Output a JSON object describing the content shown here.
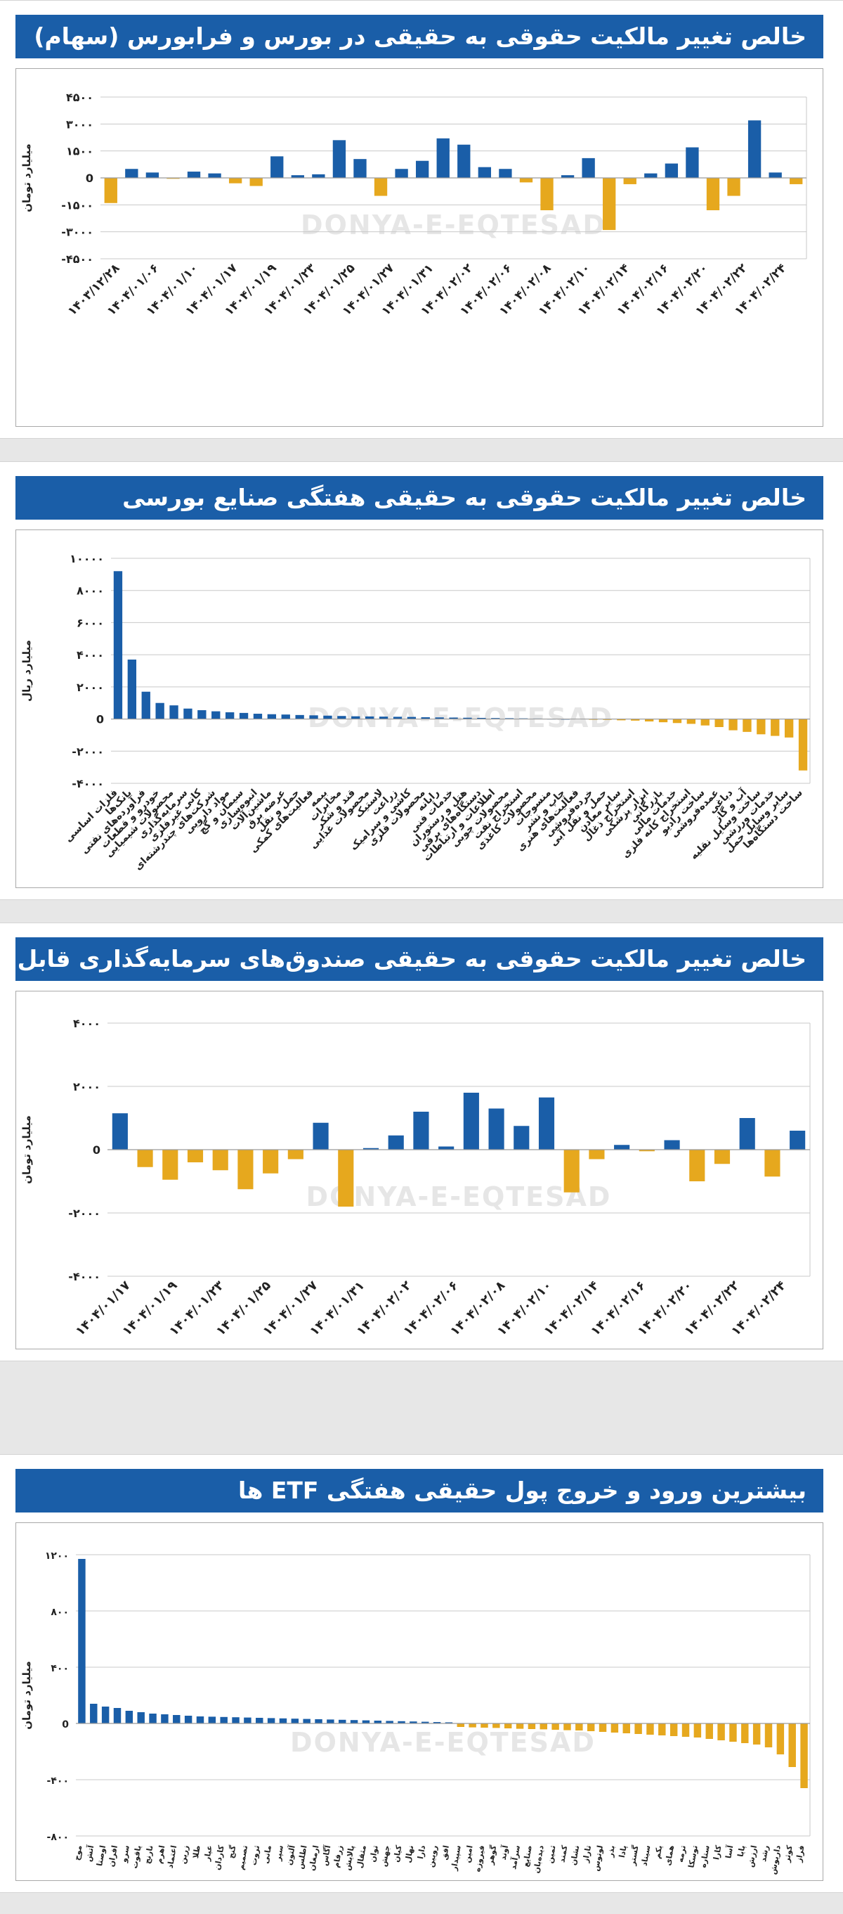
{
  "watermark": "DONYA-E-EQTESAD",
  "colors": {
    "positive": "#1a5ea8",
    "negative": "#e6a81e",
    "title_bg": "#1a5ea8",
    "grid": "#c8c8c8"
  },
  "chart_data": [
    {
      "type": "bar",
      "title": "خالص تغییر مالکیت حقوقی به حقیقی در بورس و فرابورس (سهام)",
      "ylabel": "میلیارد تومان",
      "ylim": [
        -4500,
        4500
      ],
      "yticks": [
        4500,
        3000,
        1500,
        0,
        -1500,
        -3000,
        -4500
      ],
      "ytick_labels": [
        "۴۵۰۰",
        "۳۰۰۰",
        "۱۵۰۰",
        "0",
        "-۱۵۰۰",
        "-۳۰۰۰",
        "-۴۵۰۰"
      ],
      "grid": true,
      "xtick_labels": [
        "۱۴۰۳/۱۲/۲۸",
        "۱۴۰۴/۰۱/۰۶",
        "۱۴۰۴/۰۱/۱۰",
        "۱۴۰۴/۰۱/۱۷",
        "۱۴۰۴/۰۱/۱۹",
        "۱۴۰۴/۰۱/۲۳",
        "۱۴۰۴/۰۱/۲۵",
        "۱۴۰۴/۰۱/۲۷",
        "۱۴۰۴/۰۱/۳۱",
        "۱۴۰۴/۰۲/۰۲",
        "۱۴۰۴/۰۲/۰۶",
        "۱۴۰۴/۰۲/۰۸",
        "۱۴۰۴/۰۲/۱۰",
        "۱۴۰۴/۰۲/۱۴",
        "۱۴۰۴/۰۲/۱۶",
        "۱۴۰۴/۰۲/۲۰",
        "۱۴۰۴/۰۲/۲۲",
        "۱۴۰۴/۰۲/۲۴"
      ],
      "values": [
        -1400,
        500,
        300,
        -50,
        350,
        250,
        -300,
        -450,
        1200,
        150,
        200,
        2100,
        1050,
        -1000,
        500,
        950,
        2200,
        1850,
        600,
        500,
        -250,
        -1800,
        150,
        1100,
        -2900,
        -350,
        250,
        800,
        1700,
        -1800,
        -1000,
        3200,
        300,
        -350
      ]
    },
    {
      "type": "bar",
      "title": "خالص تغییر مالکیت حقوقی به حقیقی هفتگی صنایع بورسی",
      "ylabel": "میلیارد ریال",
      "ylim": [
        -4000,
        10000
      ],
      "yticks": [
        10000,
        8000,
        6000,
        4000,
        2000,
        0,
        -2000,
        -4000
      ],
      "ytick_labels": [
        "۱۰۰۰۰",
        "۸۰۰۰",
        "۶۰۰۰",
        "۴۰۰۰",
        "۲۰۰۰",
        "0",
        "-۲۰۰۰",
        "-۴۰۰۰"
      ],
      "grid": true,
      "categories": [
        "فلزات اساسی",
        "بانک‌ها",
        "فرآورده‌های نفتی",
        "خودرو و قطعات",
        "محصولات شیمیایی",
        "سرمایه‌گذاری",
        "کانی غیرفلزی",
        "شرکت‌های چندرشته‌ای",
        "مواد دارویی",
        "سیمان و گچ",
        "انبوه‌سازی",
        "ماشین‌آلات",
        "عرضه برق",
        "حمل و نقل",
        "فعالیت‌های کمکی",
        "بیمه",
        "مخابرات",
        "قند و شکر",
        "محصولات غذایی",
        "لاستیک",
        "زراعت",
        "کاشی و سرامیک",
        "محصولات فلزی",
        "رایانه",
        "خدمات فنی",
        "هتل و رستوران",
        "دستگاه‌های برقی",
        "اطلاعات و ارتباطات",
        "محصولات چوبی",
        "استخراج نفت",
        "محصولات کاغذی",
        "منسوجات",
        "چاپ و نشر",
        "فعالیت‌های هنری",
        "خرده‌فروشی",
        "حمل و نقل آبی",
        "سایر معادن",
        "استخراج ذغال",
        "ابزار پزشکی",
        "بازرگانی",
        "خدمات مالی",
        "استخراج کانه فلزی",
        "ساخت رادیو",
        "عمده‌فروشی",
        "دباغی",
        "آب و گاز",
        "ساخت وسایل نقلیه",
        "خدمات ورزشی",
        "سایر وسایل حمل",
        "ساخت دستگاه‌ها"
      ],
      "values": [
        9200,
        3700,
        1700,
        1000,
        850,
        650,
        550,
        480,
        420,
        380,
        330,
        300,
        280,
        250,
        230,
        210,
        190,
        170,
        160,
        150,
        140,
        130,
        110,
        100,
        90,
        80,
        70,
        60,
        50,
        40,
        30,
        20,
        10,
        0,
        -20,
        -50,
        -80,
        -100,
        -150,
        -200,
        -250,
        -300,
        -400,
        -500,
        -700,
        -800,
        -950,
        -1050,
        -1150,
        -3200
      ]
    },
    {
      "type": "bar",
      "title": "خالص تغییر مالکیت حقوقی به حقیقی صندوق‌های سرمایه‌گذاری قابل معامله (ETF)",
      "ylabel": "میلیارد تومان",
      "ylim": [
        -4000,
        4000
      ],
      "yticks": [
        4000,
        2000,
        0,
        -2000,
        -4000
      ],
      "ytick_labels": [
        "۴۰۰۰",
        "۲۰۰۰",
        "0",
        "-۲۰۰۰",
        "-۴۰۰۰"
      ],
      "grid": true,
      "xtick_labels": [
        "۱۴۰۴/۰۱/۱۷",
        "۱۴۰۴/۰۱/۱۹",
        "۱۴۰۴/۰۱/۲۳",
        "۱۴۰۴/۰۱/۲۵",
        "۱۴۰۴/۰۱/۲۷",
        "۱۴۰۴/۰۱/۳۱",
        "۱۴۰۴/۰۲/۰۲",
        "۱۴۰۴/۰۲/۰۶",
        "۱۴۰۴/۰۲/۰۸",
        "۱۴۰۴/۰۲/۱۰",
        "۱۴۰۴/۰۲/۱۴",
        "۱۴۰۴/۰۲/۱۶",
        "۱۴۰۴/۰۲/۲۰",
        "۱۴۰۴/۰۲/۲۲",
        "۱۴۰۴/۰۲/۲۴"
      ],
      "values": [
        1150,
        -550,
        -950,
        -400,
        -650,
        -1250,
        -750,
        -300,
        850,
        -1800,
        50,
        450,
        1200,
        100,
        1800,
        1300,
        750,
        1650,
        -1350,
        -300,
        150,
        -50,
        300,
        -1000,
        -450,
        1000,
        -850,
        600
      ]
    },
    {
      "type": "bar",
      "title": "بیشترین ورود و خروج پول حقیقی هفتگی ETF ها",
      "ylabel": "میلیارد تومان",
      "ylim": [
        -800,
        1200
      ],
      "yticks": [
        1200,
        800,
        400,
        0,
        -400,
        -800
      ],
      "ytick_labels": [
        "۱۲۰۰",
        "۸۰۰",
        "۴۰۰",
        "0",
        "-۴۰۰",
        "-۸۰۰"
      ],
      "grid": true,
      "categories": [
        "موج",
        "آتش",
        "اوصتا",
        "افران",
        "سرو",
        "یاقوت",
        "نارنج",
        "اهرم",
        "اعتماد",
        "زرین",
        "طلا",
        "عیار",
        "کاردان",
        "گنج",
        "تصمیم",
        "ثروت",
        "مانی",
        "سپر",
        "آلتون",
        "اطلس",
        "ارمغان",
        "آگاس",
        "زرفام",
        "پالایش",
        "مثقال",
        "توان",
        "جهش",
        "کیان",
        "نهال",
        "دارا",
        "رویین",
        "افق",
        "سپیدار",
        "امین",
        "فیروزه",
        "گوهر",
        "آوند",
        "سرآمد",
        "صنایع",
        "دیده‌بان",
        "ثمین",
        "کمند",
        "نشان",
        "تاراز",
        "لوتوس",
        "بذر",
        "پادا",
        "گستر",
        "سیناد",
        "یکم",
        "همای",
        "ترمه",
        "توسکا",
        "ستاره",
        "کارا",
        "آسا",
        "پایا",
        "ارزش",
        "رشد",
        "داریوش",
        "کوثر",
        "فراز"
      ],
      "values": [
        1170,
        140,
        120,
        110,
        90,
        80,
        70,
        65,
        60,
        55,
        50,
        48,
        46,
        44,
        42,
        40,
        38,
        36,
        34,
        32,
        30,
        28,
        26,
        24,
        22,
        20,
        18,
        16,
        14,
        12,
        10,
        8,
        -25,
        -28,
        -30,
        -32,
        -35,
        -38,
        -40,
        -42,
        -45,
        -48,
        -50,
        -55,
        -60,
        -65,
        -70,
        -75,
        -80,
        -85,
        -90,
        -95,
        -100,
        -110,
        -120,
        -130,
        -140,
        -150,
        -170,
        -220,
        -310,
        -460
      ]
    }
  ]
}
